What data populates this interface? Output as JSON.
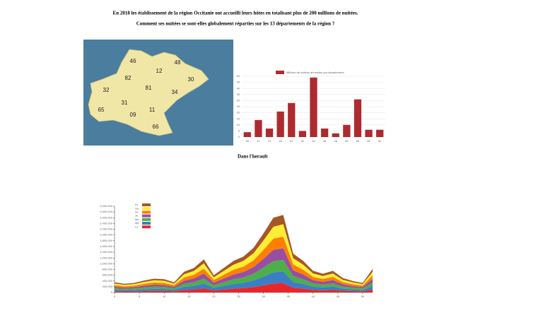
{
  "header": {
    "line1": "En 2018 les établissement de la région Occitanie ont accueilli leurs hôtes en totalisant plus de 200 millions de nuitées.",
    "line2": "Comment ses nuitées se sont-elles globalement réparties sur les 13 départements de la région ?"
  },
  "map": {
    "labels": [
      "46",
      "12",
      "48",
      "82",
      "30",
      "32",
      "81",
      "34",
      "31",
      "65",
      "09",
      "11",
      "66"
    ]
  },
  "subtitle": "Dans l'herault",
  "chart_data": [
    {
      "type": "bar",
      "series": [
        {
          "name": "Millions de nuitées annuelles par département",
          "color": "#ad2b2f",
          "values": [
            4,
            14,
            7,
            21,
            28,
            5,
            49,
            7,
            3,
            10,
            31,
            6,
            6
          ]
        }
      ],
      "categories": [
        "09",
        "11",
        "12",
        "30",
        "31",
        "32",
        "34",
        "46",
        "48",
        "65",
        "66",
        "81",
        "82"
      ],
      "ylim": [
        0,
        50
      ],
      "yticks": [
        0,
        5,
        10,
        15,
        20,
        25,
        30,
        35,
        40,
        45,
        50
      ],
      "grid": true
    },
    {
      "type": "stacked_area",
      "x": [
        0,
        2,
        4,
        6,
        8,
        10,
        12,
        14,
        16,
        18,
        20,
        22,
        24,
        26,
        28,
        30,
        32,
        34,
        36,
        38,
        40,
        42,
        44,
        46,
        48,
        50,
        52
      ],
      "xlim": [
        0,
        52
      ],
      "xticks": [
        0,
        5,
        10,
        15,
        20,
        25,
        30,
        35,
        40,
        45,
        50
      ],
      "ylim": [
        0,
        3000000
      ],
      "yticks": [
        0,
        {
          "value": 200000,
          "label": "200,000"
        },
        {
          "value": 400000,
          "label": "400,000"
        },
        {
          "value": 600000,
          "label": "600,000"
        },
        {
          "value": 800000,
          "label": "800,000"
        },
        {
          "value": 1000000,
          "label": "1,000,000"
        },
        {
          "value": 1200000,
          "label": "1,200,000"
        },
        {
          "value": 1400000,
          "label": "1,400,000"
        },
        {
          "value": 1600000,
          "label": "1,600,000"
        },
        {
          "value": 1800000,
          "label": "1,800,000"
        },
        {
          "value": 2000000,
          "label": "2,000,000"
        },
        {
          "value": 2200000,
          "label": "2,200,000"
        },
        {
          "value": 2400000,
          "label": "2,400,000"
        },
        {
          "value": 2600000,
          "label": "2,600,000"
        },
        {
          "value": 2800000,
          "label": "2,800,000"
        },
        {
          "value": 3000000,
          "label": "3,000,000"
        }
      ],
      "series": [
        {
          "name": "Lu",
          "color": "#e8262a",
          "values": [
            42000,
            36000,
            40000,
            50000,
            58000,
            55000,
            42000,
            86000,
            102000,
            138000,
            72000,
            102000,
            132000,
            150000,
            186000,
            246000,
            312000,
            324000,
            162000,
            132000,
            90000,
            78000,
            90000,
            60000,
            48000,
            40000,
            98000
          ]
        },
        {
          "name": "Ma",
          "color": "#3a7fc4",
          "values": [
            53000,
            45000,
            50000,
            63000,
            72000,
            69000,
            53000,
            108000,
            128000,
            173000,
            90000,
            128000,
            165000,
            188000,
            233000,
            308000,
            390000,
            405000,
            203000,
            165000,
            113000,
            98000,
            113000,
            75000,
            60000,
            50000,
            123000
          ]
        },
        {
          "name": "Me",
          "color": "#4daf4a",
          "values": [
            53000,
            45000,
            50000,
            63000,
            72000,
            69000,
            53000,
            108000,
            128000,
            173000,
            90000,
            128000,
            165000,
            188000,
            233000,
            308000,
            390000,
            405000,
            203000,
            165000,
            113000,
            98000,
            113000,
            75000,
            60000,
            50000,
            123000
          ]
        },
        {
          "name": "Je",
          "color": "#984ea3",
          "values": [
            53000,
            45000,
            50000,
            63000,
            72000,
            69000,
            53000,
            108000,
            128000,
            173000,
            90000,
            128000,
            165000,
            188000,
            233000,
            308000,
            390000,
            405000,
            203000,
            165000,
            113000,
            98000,
            113000,
            75000,
            60000,
            50000,
            123000
          ]
        },
        {
          "name": "Ve",
          "color": "#ff7f00",
          "values": [
            53000,
            45000,
            50000,
            63000,
            72000,
            69000,
            53000,
            108000,
            128000,
            173000,
            90000,
            128000,
            165000,
            188000,
            233000,
            308000,
            390000,
            405000,
            203000,
            165000,
            113000,
            98000,
            113000,
            75000,
            60000,
            50000,
            123000
          ]
        },
        {
          "name": "Sa",
          "color": "#ffee33",
          "values": [
            56000,
            48000,
            53000,
            67000,
            77000,
            74000,
            56000,
            115000,
            136000,
            184000,
            96000,
            136000,
            176000,
            200000,
            248000,
            328000,
            416000,
            432000,
            216000,
            176000,
            120000,
            104000,
            120000,
            80000,
            64000,
            53000,
            131000
          ]
        },
        {
          "name": "Di",
          "color": "#a65628",
          "values": [
            42000,
            36000,
            40000,
            50000,
            58000,
            55000,
            42000,
            86000,
            102000,
            138000,
            72000,
            102000,
            132000,
            150000,
            186000,
            246000,
            312000,
            324000,
            162000,
            132000,
            90000,
            78000,
            90000,
            60000,
            48000,
            40000,
            98000
          ]
        }
      ]
    }
  ]
}
